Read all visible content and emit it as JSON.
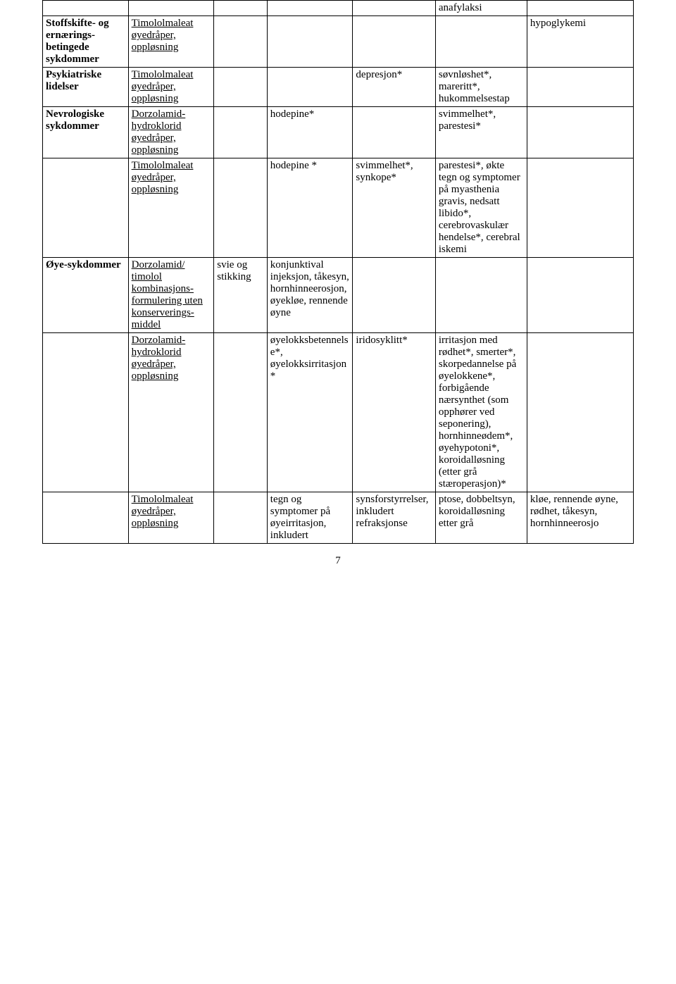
{
  "table": {
    "rows": [
      {
        "c0": "",
        "c0_bold": true,
        "c1": "",
        "c2": "",
        "c3": "",
        "c4": "",
        "c5": "anafylaksi",
        "c6": ""
      },
      {
        "c0": "Stoffskifte- og ernærings-betingede sykdommer",
        "c0_bold": true,
        "c1": "Timololmaleat øyedråper, oppløsning",
        "c1_ul": true,
        "c2": "",
        "c3": "",
        "c4": "",
        "c5": "",
        "c6": "hypoglykemi"
      },
      {
        "c0": "Psykiatriske lidelser",
        "c0_bold": true,
        "c1": "Timololmaleat øyedråper, oppløsning",
        "c1_ul": true,
        "c2": "",
        "c3": "",
        "c4": "depresjon*",
        "c5": "søvnløshet*, mareritt*, hukommelsestap",
        "c6": ""
      },
      {
        "c0": "Nevrologiske sykdommer",
        "c0_bold": true,
        "c1": "Dorzolamid-hydroklorid øyedråper, oppløsning",
        "c1_ul": true,
        "c2": "",
        "c3": "hodepine*",
        "c4": "",
        "c5": "svimmelhet*, parestesi*",
        "c6": ""
      },
      {
        "c0": "",
        "c1": "Timololmaleat øyedråper, oppløsning",
        "c1_ul": true,
        "c2": "",
        "c3": "hodepine *",
        "c4": "svimmelhet*, synkope*",
        "c5": "parestesi*, økte tegn og symptomer på myasthenia gravis, nedsatt libido*, cerebrovaskulær hendelse*, cerebral iskemi",
        "c6": ""
      },
      {
        "c0": "Øye-sykdommer",
        "c0_bold": true,
        "c1": "Dorzolamid/ timolol kombinasjons-formulering uten konserverings-middel",
        "c1_ul": true,
        "c2": "svie og stikking",
        "c3": "konjunktival injeksjon, tåkesyn, hornhinneerosjon, øyekløe, rennende øyne",
        "c4": "",
        "c5": "",
        "c6": ""
      },
      {
        "c0": "",
        "c1": "Dorzolamid-hydroklorid øyedråper, oppløsning",
        "c1_ul": true,
        "c2": "",
        "c3": "øyelokksbetennelse*, øyelokksirritasjon*",
        "c4": "iridosyklitt*",
        "c5": "irritasjon med rødhet*, smerter*, skorpedannelse på øyelokkene*, forbigående nærsynthet (som opphører ved seponering), hornhinneødem*, øyehypotoni*, koroidalløsning (etter grå stæroperasjon)*",
        "c6": ""
      },
      {
        "c0": "",
        "c1": "Timololmaleat øyedråper, oppløsning",
        "c1_ul": true,
        "c2": "",
        "c3": "tegn og symptomer på øyeirritasjon, inkludert",
        "c4": "synsforstyrrelser, inkludert refraksjonse",
        "c5": "ptose, dobbeltsyn, koroidalløsning etter grå",
        "c6": "kløe, rennende øyne, rødhet, tåkesyn, hornhinneerosjo"
      }
    ]
  },
  "pagenum": "7",
  "colors": {
    "text": "#000000",
    "bg": "#ffffff",
    "border": "#000000"
  }
}
